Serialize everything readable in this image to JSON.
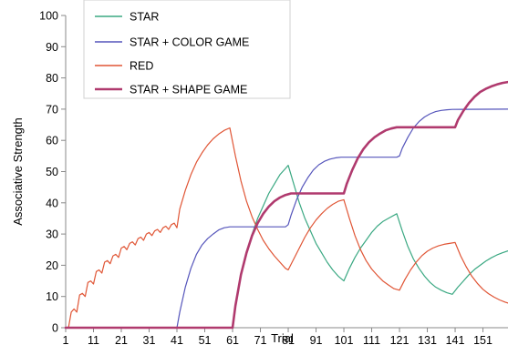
{
  "chart_data": {
    "type": "line",
    "title": "",
    "xlabel": "Trial",
    "ylabel": "Associative Strength",
    "xlim": [
      1,
      160
    ],
    "ylim": [
      0,
      100
    ],
    "x_ticks": [
      1,
      11,
      21,
      31,
      41,
      51,
      61,
      71,
      81,
      91,
      101,
      111,
      121,
      131,
      141,
      151
    ],
    "y_ticks": [
      0,
      10,
      20,
      30,
      40,
      50,
      60,
      70,
      80,
      90,
      100
    ],
    "legend_position": "top-left",
    "series": [
      {
        "name": "STAR",
        "color": "#3aa882",
        "points": [
          [
            1,
            0
          ],
          [
            60,
            0
          ],
          [
            61,
            0
          ],
          [
            62,
            7
          ],
          [
            64,
            17
          ],
          [
            66,
            24
          ],
          [
            68,
            30
          ],
          [
            70,
            35
          ],
          [
            72,
            39
          ],
          [
            74,
            43
          ],
          [
            76,
            46
          ],
          [
            78,
            49
          ],
          [
            80,
            51
          ],
          [
            81,
            52
          ],
          [
            83,
            46
          ],
          [
            85,
            40
          ],
          [
            87,
            35
          ],
          [
            89,
            31
          ],
          [
            91,
            27
          ],
          [
            93,
            24
          ],
          [
            95,
            21
          ],
          [
            97,
            18.5
          ],
          [
            99,
            16.5
          ],
          [
            101,
            15
          ],
          [
            103,
            19
          ],
          [
            105,
            22.5
          ],
          [
            107,
            25.5
          ],
          [
            109,
            28
          ],
          [
            111,
            30.5
          ],
          [
            113,
            32.5
          ],
          [
            115,
            34
          ],
          [
            117,
            35
          ],
          [
            120,
            36.5
          ],
          [
            122,
            31
          ],
          [
            124,
            26
          ],
          [
            126,
            22
          ],
          [
            128,
            19
          ],
          [
            130,
            16.5
          ],
          [
            132,
            14.5
          ],
          [
            134,
            13
          ],
          [
            136,
            12
          ],
          [
            138,
            11.2
          ],
          [
            140,
            10.7
          ],
          [
            142,
            13
          ],
          [
            144,
            15
          ],
          [
            146,
            17
          ],
          [
            148,
            18.7
          ],
          [
            150,
            20
          ],
          [
            152,
            21.3
          ],
          [
            154,
            22.4
          ],
          [
            156,
            23.3
          ],
          [
            158,
            24
          ],
          [
            160,
            24.6
          ]
        ]
      },
      {
        "name": "STAR + COLOR GAME",
        "color": "#5555bb",
        "points": [
          [
            1,
            0
          ],
          [
            40,
            0
          ],
          [
            41,
            0
          ],
          [
            42,
            5
          ],
          [
            44,
            13
          ],
          [
            46,
            19
          ],
          [
            48,
            23.5
          ],
          [
            50,
            26.5
          ],
          [
            52,
            28.5
          ],
          [
            54,
            30
          ],
          [
            56,
            31.3
          ],
          [
            58,
            32
          ],
          [
            60,
            32.3
          ],
          [
            61,
            32.3
          ],
          [
            80,
            32.3
          ],
          [
            81,
            33
          ],
          [
            82,
            36
          ],
          [
            84,
            41
          ],
          [
            86,
            45
          ],
          [
            88,
            48
          ],
          [
            90,
            50.5
          ],
          [
            92,
            52.2
          ],
          [
            94,
            53.3
          ],
          [
            96,
            54
          ],
          [
            98,
            54.4
          ],
          [
            100,
            54.6
          ],
          [
            101,
            54.6
          ],
          [
            120,
            54.6
          ],
          [
            121,
            55
          ],
          [
            122,
            57.5
          ],
          [
            124,
            61
          ],
          [
            126,
            64
          ],
          [
            128,
            66
          ],
          [
            130,
            67.5
          ],
          [
            132,
            68.5
          ],
          [
            134,
            69.2
          ],
          [
            136,
            69.6
          ],
          [
            138,
            69.8
          ],
          [
            140,
            69.9
          ],
          [
            160,
            70
          ]
        ]
      },
      {
        "name": "RED",
        "color": "#e05535",
        "points": [
          [
            1,
            0
          ],
          [
            2,
            0
          ],
          [
            3,
            5
          ],
          [
            4,
            6
          ],
          [
            5,
            5
          ],
          [
            6,
            10.5
          ],
          [
            7,
            11
          ],
          [
            8,
            10
          ],
          [
            9,
            14.5
          ],
          [
            10,
            15
          ],
          [
            11,
            14
          ],
          [
            12,
            18
          ],
          [
            13,
            18.5
          ],
          [
            14,
            17.5
          ],
          [
            15,
            21
          ],
          [
            16,
            21.5
          ],
          [
            17,
            20.5
          ],
          [
            18,
            23
          ],
          [
            19,
            23.5
          ],
          [
            20,
            22.5
          ],
          [
            21,
            25.5
          ],
          [
            22,
            26
          ],
          [
            23,
            25
          ],
          [
            24,
            27
          ],
          [
            25,
            27.5
          ],
          [
            26,
            26.5
          ],
          [
            27,
            28.5
          ],
          [
            28,
            29
          ],
          [
            29,
            28
          ],
          [
            30,
            30
          ],
          [
            31,
            30.5
          ],
          [
            32,
            29.5
          ],
          [
            33,
            31
          ],
          [
            34,
            31.5
          ],
          [
            35,
            30.5
          ],
          [
            36,
            32
          ],
          [
            37,
            32.5
          ],
          [
            38,
            31.5
          ],
          [
            39,
            33
          ],
          [
            40,
            33.5
          ],
          [
            41,
            32
          ],
          [
            42,
            38
          ],
          [
            44,
            44
          ],
          [
            46,
            49
          ],
          [
            48,
            53
          ],
          [
            50,
            56
          ],
          [
            52,
            58.5
          ],
          [
            54,
            60.5
          ],
          [
            56,
            62
          ],
          [
            58,
            63.2
          ],
          [
            60,
            64
          ],
          [
            62,
            55
          ],
          [
            64,
            47
          ],
          [
            66,
            40.5
          ],
          [
            68,
            35.5
          ],
          [
            70,
            31.5
          ],
          [
            72,
            28
          ],
          [
            74,
            25.3
          ],
          [
            76,
            23
          ],
          [
            78,
            21
          ],
          [
            80,
            19
          ],
          [
            81,
            18.5
          ],
          [
            83,
            22
          ],
          [
            85,
            25.5
          ],
          [
            87,
            29
          ],
          [
            89,
            32
          ],
          [
            91,
            34.5
          ],
          [
            93,
            36.5
          ],
          [
            95,
            38.2
          ],
          [
            97,
            39.5
          ],
          [
            99,
            40.5
          ],
          [
            101,
            41
          ],
          [
            103,
            35
          ],
          [
            105,
            29.5
          ],
          [
            107,
            25
          ],
          [
            109,
            21.5
          ],
          [
            111,
            18.8
          ],
          [
            113,
            16.8
          ],
          [
            115,
            15
          ],
          [
            117,
            13.7
          ],
          [
            119,
            12.5
          ],
          [
            121,
            12
          ],
          [
            123,
            15.5
          ],
          [
            125,
            18.5
          ],
          [
            127,
            21
          ],
          [
            129,
            23
          ],
          [
            131,
            24.5
          ],
          [
            133,
            25.5
          ],
          [
            135,
            26.2
          ],
          [
            137,
            26.7
          ],
          [
            139,
            27
          ],
          [
            141,
            27.3
          ],
          [
            143,
            23
          ],
          [
            145,
            19.5
          ],
          [
            147,
            16.5
          ],
          [
            149,
            14.2
          ],
          [
            151,
            12.3
          ],
          [
            153,
            10.9
          ],
          [
            155,
            9.8
          ],
          [
            157,
            8.9
          ],
          [
            159,
            8.2
          ],
          [
            160,
            7.9
          ]
        ]
      },
      {
        "name": "STAR + SHAPE GAME",
        "color": "#b03a6e",
        "points": [
          [
            1,
            0
          ],
          [
            60,
            0
          ],
          [
            61,
            0
          ],
          [
            62,
            7
          ],
          [
            64,
            17
          ],
          [
            66,
            24
          ],
          [
            68,
            29.5
          ],
          [
            70,
            33.5
          ],
          [
            72,
            36.5
          ],
          [
            74,
            38.8
          ],
          [
            76,
            40.5
          ],
          [
            78,
            41.7
          ],
          [
            80,
            42.5
          ],
          [
            82,
            43
          ],
          [
            84,
            43
          ],
          [
            100,
            43
          ],
          [
            101,
            43
          ],
          [
            102,
            46
          ],
          [
            104,
            50.5
          ],
          [
            106,
            54.3
          ],
          [
            108,
            57.2
          ],
          [
            110,
            59.4
          ],
          [
            112,
            61
          ],
          [
            114,
            62.2
          ],
          [
            116,
            63.2
          ],
          [
            118,
            63.8
          ],
          [
            120,
            64.2
          ],
          [
            121,
            64.2
          ],
          [
            140,
            64.2
          ],
          [
            141,
            64.2
          ],
          [
            142,
            66.5
          ],
          [
            144,
            69.5
          ],
          [
            146,
            72
          ],
          [
            148,
            74
          ],
          [
            150,
            75.5
          ],
          [
            152,
            76.5
          ],
          [
            154,
            77.3
          ],
          [
            156,
            77.9
          ],
          [
            158,
            78.4
          ],
          [
            160,
            78.7
          ]
        ]
      }
    ]
  }
}
